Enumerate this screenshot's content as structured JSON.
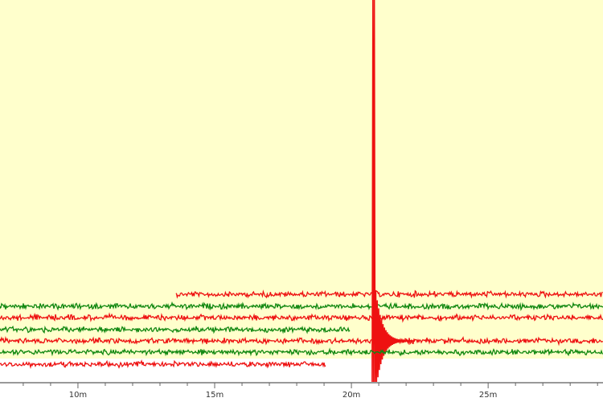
{
  "chart_data": {
    "type": "line",
    "title": "",
    "xlabel": "",
    "ylabel": "",
    "xlim": [
      7.15,
      29.2
    ],
    "x_ticks": [
      {
        "value": 10,
        "label": "10m"
      },
      {
        "value": 15,
        "label": "15m"
      },
      {
        "value": 20,
        "label": "20m"
      },
      {
        "value": 25,
        "label": "25m"
      }
    ],
    "minor_tick_step": 1,
    "grid": false,
    "colors": {
      "background": "#ffffcc",
      "red": "#ee1111",
      "green": "#118811",
      "axis": "#999999"
    },
    "series": [
      {
        "color": "#ee1111",
        "x_start": 13.6,
        "x_end": 29.2
      },
      {
        "color": "#118811",
        "x_start": 7.15,
        "x_end": 29.2
      },
      {
        "color": "#ee1111",
        "x_start": 7.15,
        "x_end": 29.2
      },
      {
        "color": "#118811",
        "x_start": 7.15,
        "x_end": 19.95
      },
      {
        "color": "#ee1111",
        "x_start": 7.15,
        "x_end": 29.2,
        "event_x": 20.76
      },
      {
        "color": "#118811",
        "x_start": 7.15,
        "x_end": 29.2
      },
      {
        "color": "#ee1111",
        "x_start": 7.15,
        "x_end": 19.06
      }
    ],
    "event": {
      "x": 20.76,
      "color": "#ee1111"
    }
  }
}
